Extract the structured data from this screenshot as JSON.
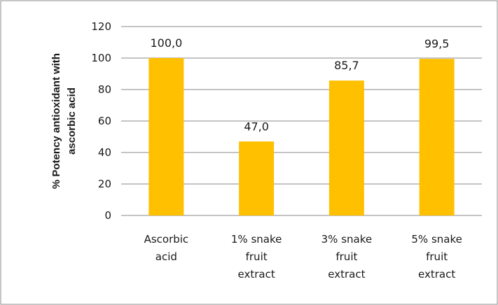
{
  "chart_data": {
    "type": "bar",
    "categories": [
      [
        "Ascorbic",
        "acid"
      ],
      [
        "1% snake",
        "fruit",
        "extract"
      ],
      [
        "3% snake",
        "fruit",
        "extract"
      ],
      [
        "5% snake",
        "fruit",
        "extract"
      ]
    ],
    "values": [
      100.0,
      47.0,
      85.7,
      99.5
    ],
    "data_labels": [
      "100,0",
      "47,0",
      "85,7",
      "99,5"
    ],
    "ylabel_lines": [
      "% Potency antioxidant  with",
      "ascorbic acid"
    ],
    "ylim": [
      0,
      120
    ],
    "yticks": [
      0,
      20,
      40,
      60,
      80,
      100,
      120
    ],
    "grid": true,
    "legend": "none",
    "bar_color": "#FFC000",
    "grid_color": "#888888"
  }
}
